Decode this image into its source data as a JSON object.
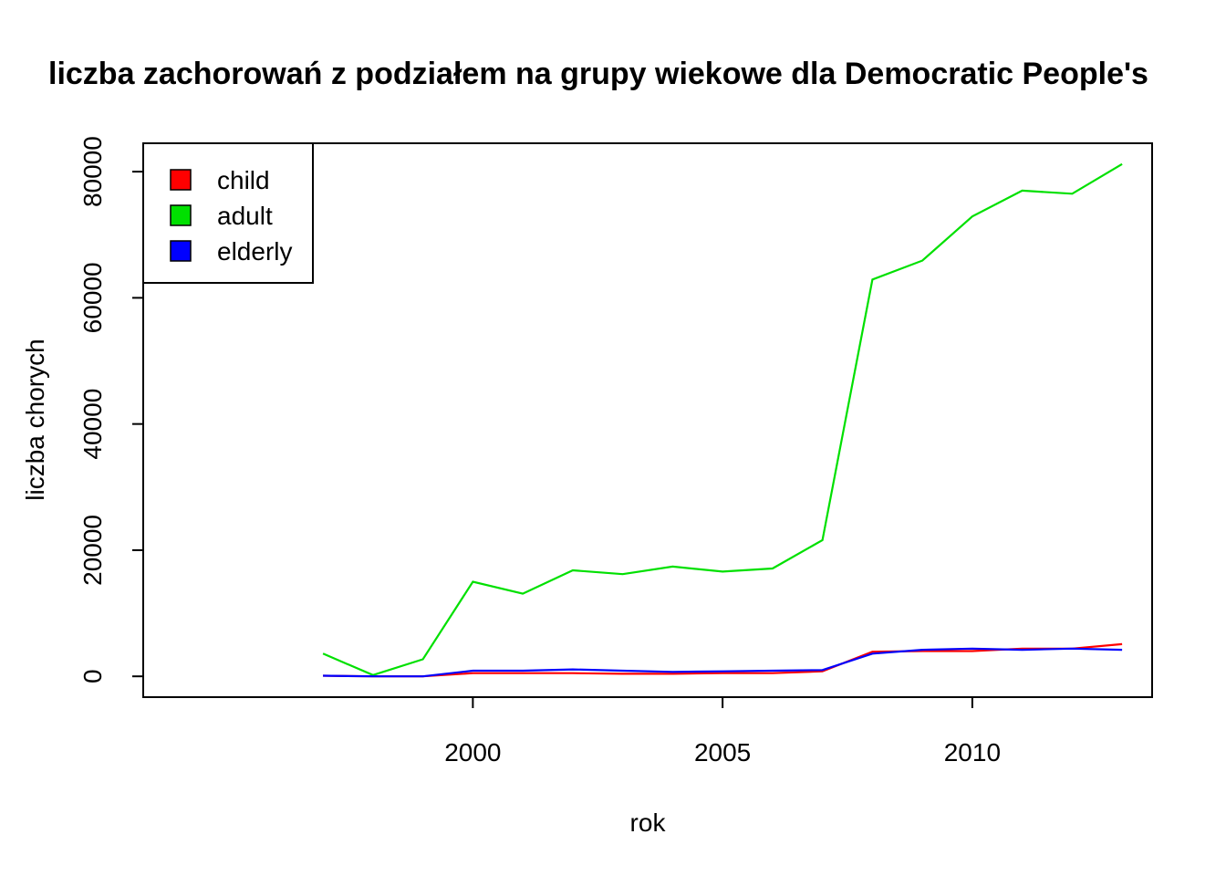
{
  "chart_data": {
    "type": "line",
    "title": "liczba zachorowań z podziałem na grupy wiekowe dla Democratic People's",
    "xlabel": "rok",
    "ylabel": "liczba chorych",
    "x": [
      1997,
      1998,
      1999,
      2000,
      2001,
      2002,
      2003,
      2004,
      2005,
      2006,
      2007,
      2008,
      2009,
      2010,
      2011,
      2012,
      2013
    ],
    "xlim": [
      1993.4,
      2013.6
    ],
    "ylim": [
      -3300,
      84500
    ],
    "xticks": [
      2000,
      2005,
      2010
    ],
    "yticks": [
      0,
      20000,
      40000,
      60000,
      80000
    ],
    "grid": false,
    "legend": {
      "position": "top-left",
      "boxed": true
    },
    "series": [
      {
        "name": "child",
        "color": "#FF0000",
        "values": [
          100,
          0,
          0,
          500,
          500,
          500,
          400,
          400,
          500,
          500,
          800,
          3900,
          4000,
          4000,
          4400,
          4400,
          5100
        ]
      },
      {
        "name": "adult",
        "color": "#00E000",
        "values": [
          3600,
          200,
          2700,
          15000,
          13100,
          16800,
          16200,
          17400,
          16600,
          17100,
          21600,
          62900,
          65900,
          72900,
          77000,
          76500,
          81200
        ]
      },
      {
        "name": "elderly",
        "color": "#0000FF",
        "values": [
          100,
          0,
          0,
          900,
          900,
          1100,
          900,
          700,
          800,
          900,
          1000,
          3600,
          4200,
          4400,
          4200,
          4400,
          4200
        ]
      }
    ]
  }
}
